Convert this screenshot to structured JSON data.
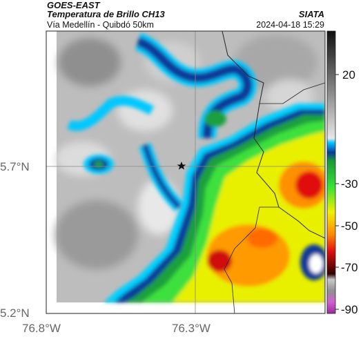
{
  "header": {
    "source": "GOES-EAST",
    "product": "Temperatura de Brillo CH13",
    "org": "SIATA",
    "location": "Vía Medellín - Quibdó 50km",
    "datetime": "2024-04-18 15:29"
  },
  "axes": {
    "lat_ticks": [
      "5.7°N",
      "5.2°N"
    ],
    "lon_ticks": [
      "76.8°W",
      "76.3°W"
    ]
  },
  "colorbar": {
    "ticks": [
      "20",
      "-30",
      "-50",
      "-70",
      "-90"
    ]
  },
  "marker": {
    "icon": "star-icon"
  }
}
